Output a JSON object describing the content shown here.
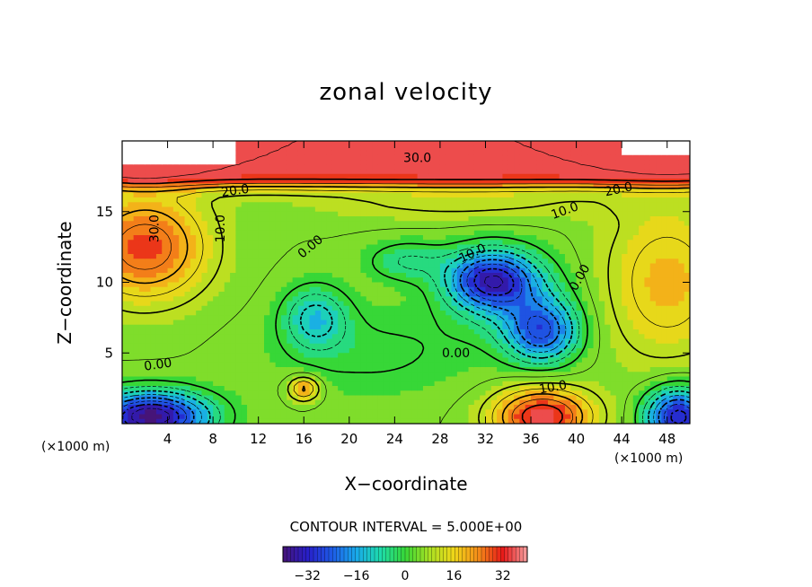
{
  "chart_data": {
    "type": "heatmap",
    "title": "zonal velocity",
    "xlabel": "X−coordinate",
    "ylabel": "Z−coordinate",
    "x_unit_label": "(×1000 m)",
    "xlim": [
      0,
      50
    ],
    "ylim": [
      0,
      20
    ],
    "x_ticks": [
      4,
      8,
      12,
      16,
      20,
      24,
      28,
      32,
      36,
      40,
      44,
      48
    ],
    "y_ticks": [
      5,
      10,
      15
    ],
    "contour_interval_text": "CONTOUR INTERVAL = 5.000E+00",
    "contour_labels": [
      "30.0",
      "20.0",
      "30.0",
      "10.0",
      "0.00",
      "20.0",
      "10.0",
      "10.0",
      "0.00",
      "0.00",
      "0.00",
      "10.0"
    ],
    "colorbar": {
      "range": [
        -40,
        40
      ],
      "ticks": [
        -32,
        -16,
        0,
        16,
        32
      ],
      "tick_labels": [
        "−32",
        "−16",
        "0",
        "16",
        "32"
      ]
    },
    "colors": {
      "strong_negative": "#5a1a9c",
      "negative": "#1f6fe0",
      "zero": "#34d23a",
      "positive_mid": "#e8e01a",
      "strong_positive": "#e8121a"
    },
    "field_features": [
      {
        "name": "upper jet",
        "x": 25,
        "z": 17.8,
        "value": 34
      },
      {
        "name": "left upper lobe",
        "x": 3,
        "z": 13,
        "value": 30
      },
      {
        "name": "negative core",
        "x": 32,
        "z": 10.5,
        "value": -28
      },
      {
        "name": "negative lobe",
        "x": 37,
        "z": 6,
        "value": -25
      },
      {
        "name": "left bottom negative",
        "x": 3,
        "z": 1,
        "value": -35
      },
      {
        "name": "right bottom negative",
        "x": 48,
        "z": 1,
        "value": -30
      },
      {
        "name": "bottom positive",
        "x": 37,
        "z": 1,
        "value": 28
      },
      {
        "name": "small positive",
        "x": 16,
        "z": 2.5,
        "value": 18
      },
      {
        "name": "mid negative",
        "x": 17,
        "z": 7.5,
        "value": -14
      }
    ]
  }
}
